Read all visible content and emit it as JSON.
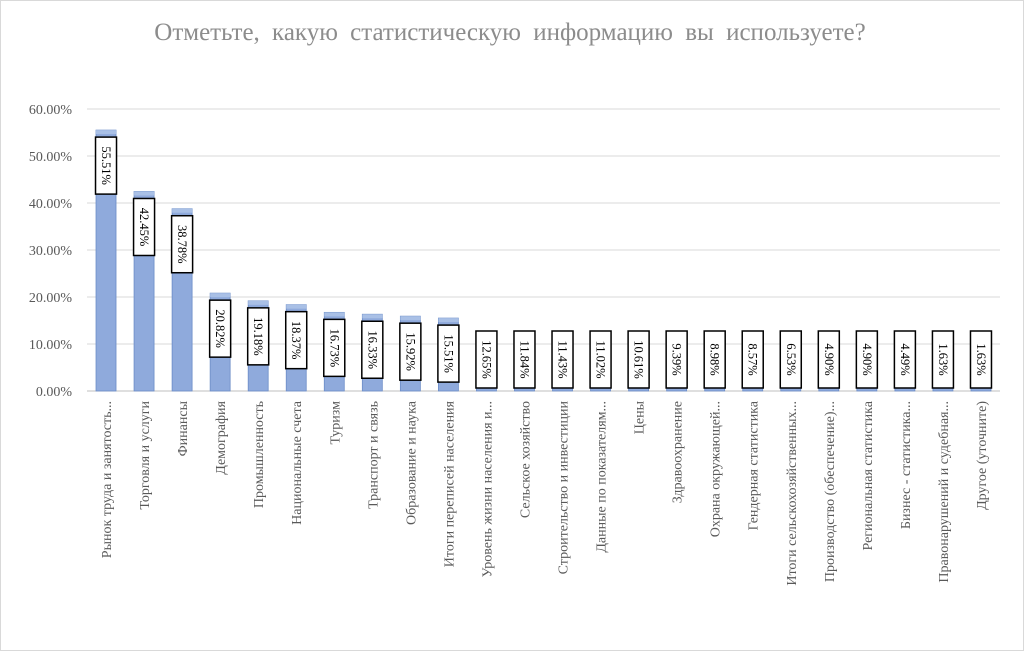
{
  "chart_data": {
    "type": "bar",
    "title": "Отметьте, какую статистическую информацию вы используете?",
    "ylim": [
      0,
      60
    ],
    "yticks": [
      "0.00%",
      "10.00%",
      "20.00%",
      "30.00%",
      "40.00%",
      "50.00%",
      "60.00%"
    ],
    "grid": true,
    "legend": "none",
    "bar_color": "#8faadc",
    "categories": [
      "Рынок труда и занятость...",
      "Торговля и услуги",
      "Финансы",
      "Демография",
      "Промышленность",
      "Национальные счета",
      "Туризм",
      "Транспорт и связь",
      "Образование и наука",
      "Итоги переписей населения",
      "Уровень жизни населения и...",
      "Сельское хозяйство",
      "Строительство и инвестиции",
      "Данные по показателям...",
      "Цены",
      "Здравоохранение",
      "Охрана окружающей...",
      "Гендерная статистика",
      "Итоги сельскохозяйственных...",
      "Производство (обеспечение)...",
      "Региональная статистика",
      "Бизнес - статистика...",
      "Правонарушений и судебная...",
      "Другое (уточните)"
    ],
    "values": [
      55.51,
      42.45,
      38.78,
      20.82,
      19.18,
      18.37,
      16.73,
      16.33,
      15.92,
      15.51,
      12.65,
      11.84,
      11.43,
      11.02,
      10.61,
      9.39,
      8.98,
      8.57,
      6.53,
      4.9,
      4.9,
      4.49,
      1.63,
      1.63
    ],
    "data_labels": [
      "55.51%",
      "42.45%",
      "38.78%",
      "20.82%",
      "19.18%",
      "18.37%",
      "16.73%",
      "16.33%",
      "15.92%",
      "15.51%",
      "12.65%",
      "11.84%",
      "11.43%",
      "11.02%",
      "10.61%",
      "9.39%",
      "8.98%",
      "8.57%",
      "6.53%",
      "4.90%",
      "4.90%",
      "4.49%",
      "1.63%",
      "1.63%"
    ]
  }
}
